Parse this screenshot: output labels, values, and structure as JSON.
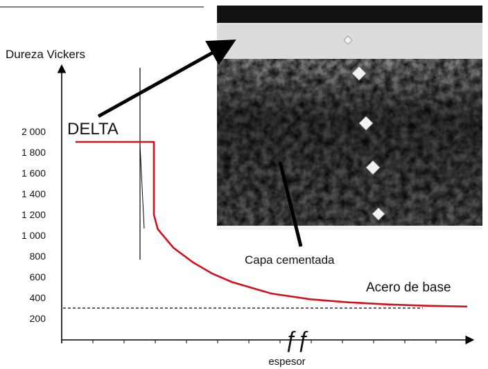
{
  "chart_data": {
    "type": "line",
    "title": "",
    "ylabel": "Dureza Vickers",
    "xlabel": "espesor",
    "ylim": [
      200,
      2000
    ],
    "yticks": [
      "2 000",
      "1 800",
      "1 600",
      "1 400",
      "1 200",
      "1 000",
      "800",
      "600",
      "400",
      "200"
    ],
    "ytick_values": [
      2000,
      1800,
      1600,
      1400,
      1200,
      1000,
      800,
      600,
      400,
      200
    ],
    "x_tick_count": 12,
    "grid": false,
    "series": [
      {
        "color": "#d0101e",
        "x": [
          0,
          0.2,
          0.2,
          0.21,
          0.25,
          0.3,
          0.35,
          0.4,
          0.5,
          0.6,
          0.7,
          0.8,
          0.9,
          1.0
        ],
        "y": [
          1900,
          1900,
          1200,
          1060,
          880,
          740,
          630,
          550,
          440,
          385,
          355,
          335,
          322,
          315
        ]
      }
    ],
    "reference_line": {
      "y": 300,
      "style": "dashed"
    },
    "annotations": {
      "delta": "DELTA",
      "capa": "Capa cementada",
      "acero": "Acero de base",
      "ff": "ƒƒ"
    },
    "inset": {
      "kind": "micrograph"
    }
  }
}
